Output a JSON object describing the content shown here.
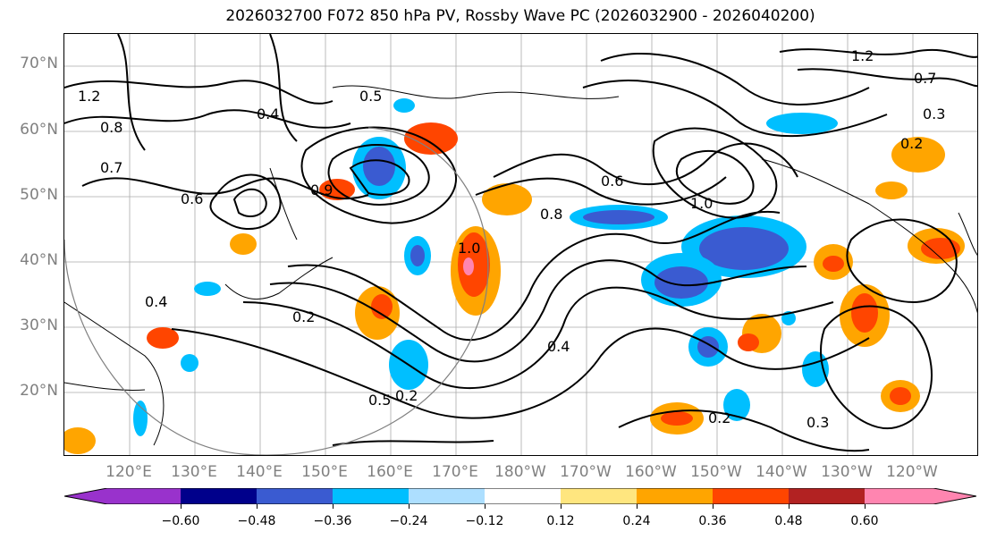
{
  "title": "2026032700 F072 850 hPa PV, Rossby Wave PC (2026032900 - 2026040200)",
  "latitude_labels": [
    "70°N",
    "60°N",
    "50°N",
    "40°N",
    "30°N",
    "20°N"
  ],
  "longitude_labels": [
    "120°E",
    "130°E",
    "140°E",
    "150°E",
    "160°E",
    "170°E",
    "180°W",
    "170°W",
    "160°W",
    "150°W",
    "140°W",
    "130°W",
    "120°W"
  ],
  "contour_labels": [
    "1.2",
    "0.8",
    "0.7",
    "0.3",
    "0.5",
    "0.4",
    "0.6",
    "0.2",
    "1.0",
    "0.9"
  ],
  "colorbar": {
    "ticks": [
      "−0.60",
      "−0.48",
      "−0.36",
      "−0.24",
      "−0.12",
      "0.12",
      "0.24",
      "0.36",
      "0.48",
      "0.60"
    ],
    "colors": [
      "#9932CC",
      "#00008B",
      "#3A5BD1",
      "#00BFFF",
      "#ADDFFF",
      "#FFFFFF",
      "#FFE67F",
      "#FFA500",
      "#FF4500",
      "#B22222",
      "#FF85B0"
    ]
  }
}
